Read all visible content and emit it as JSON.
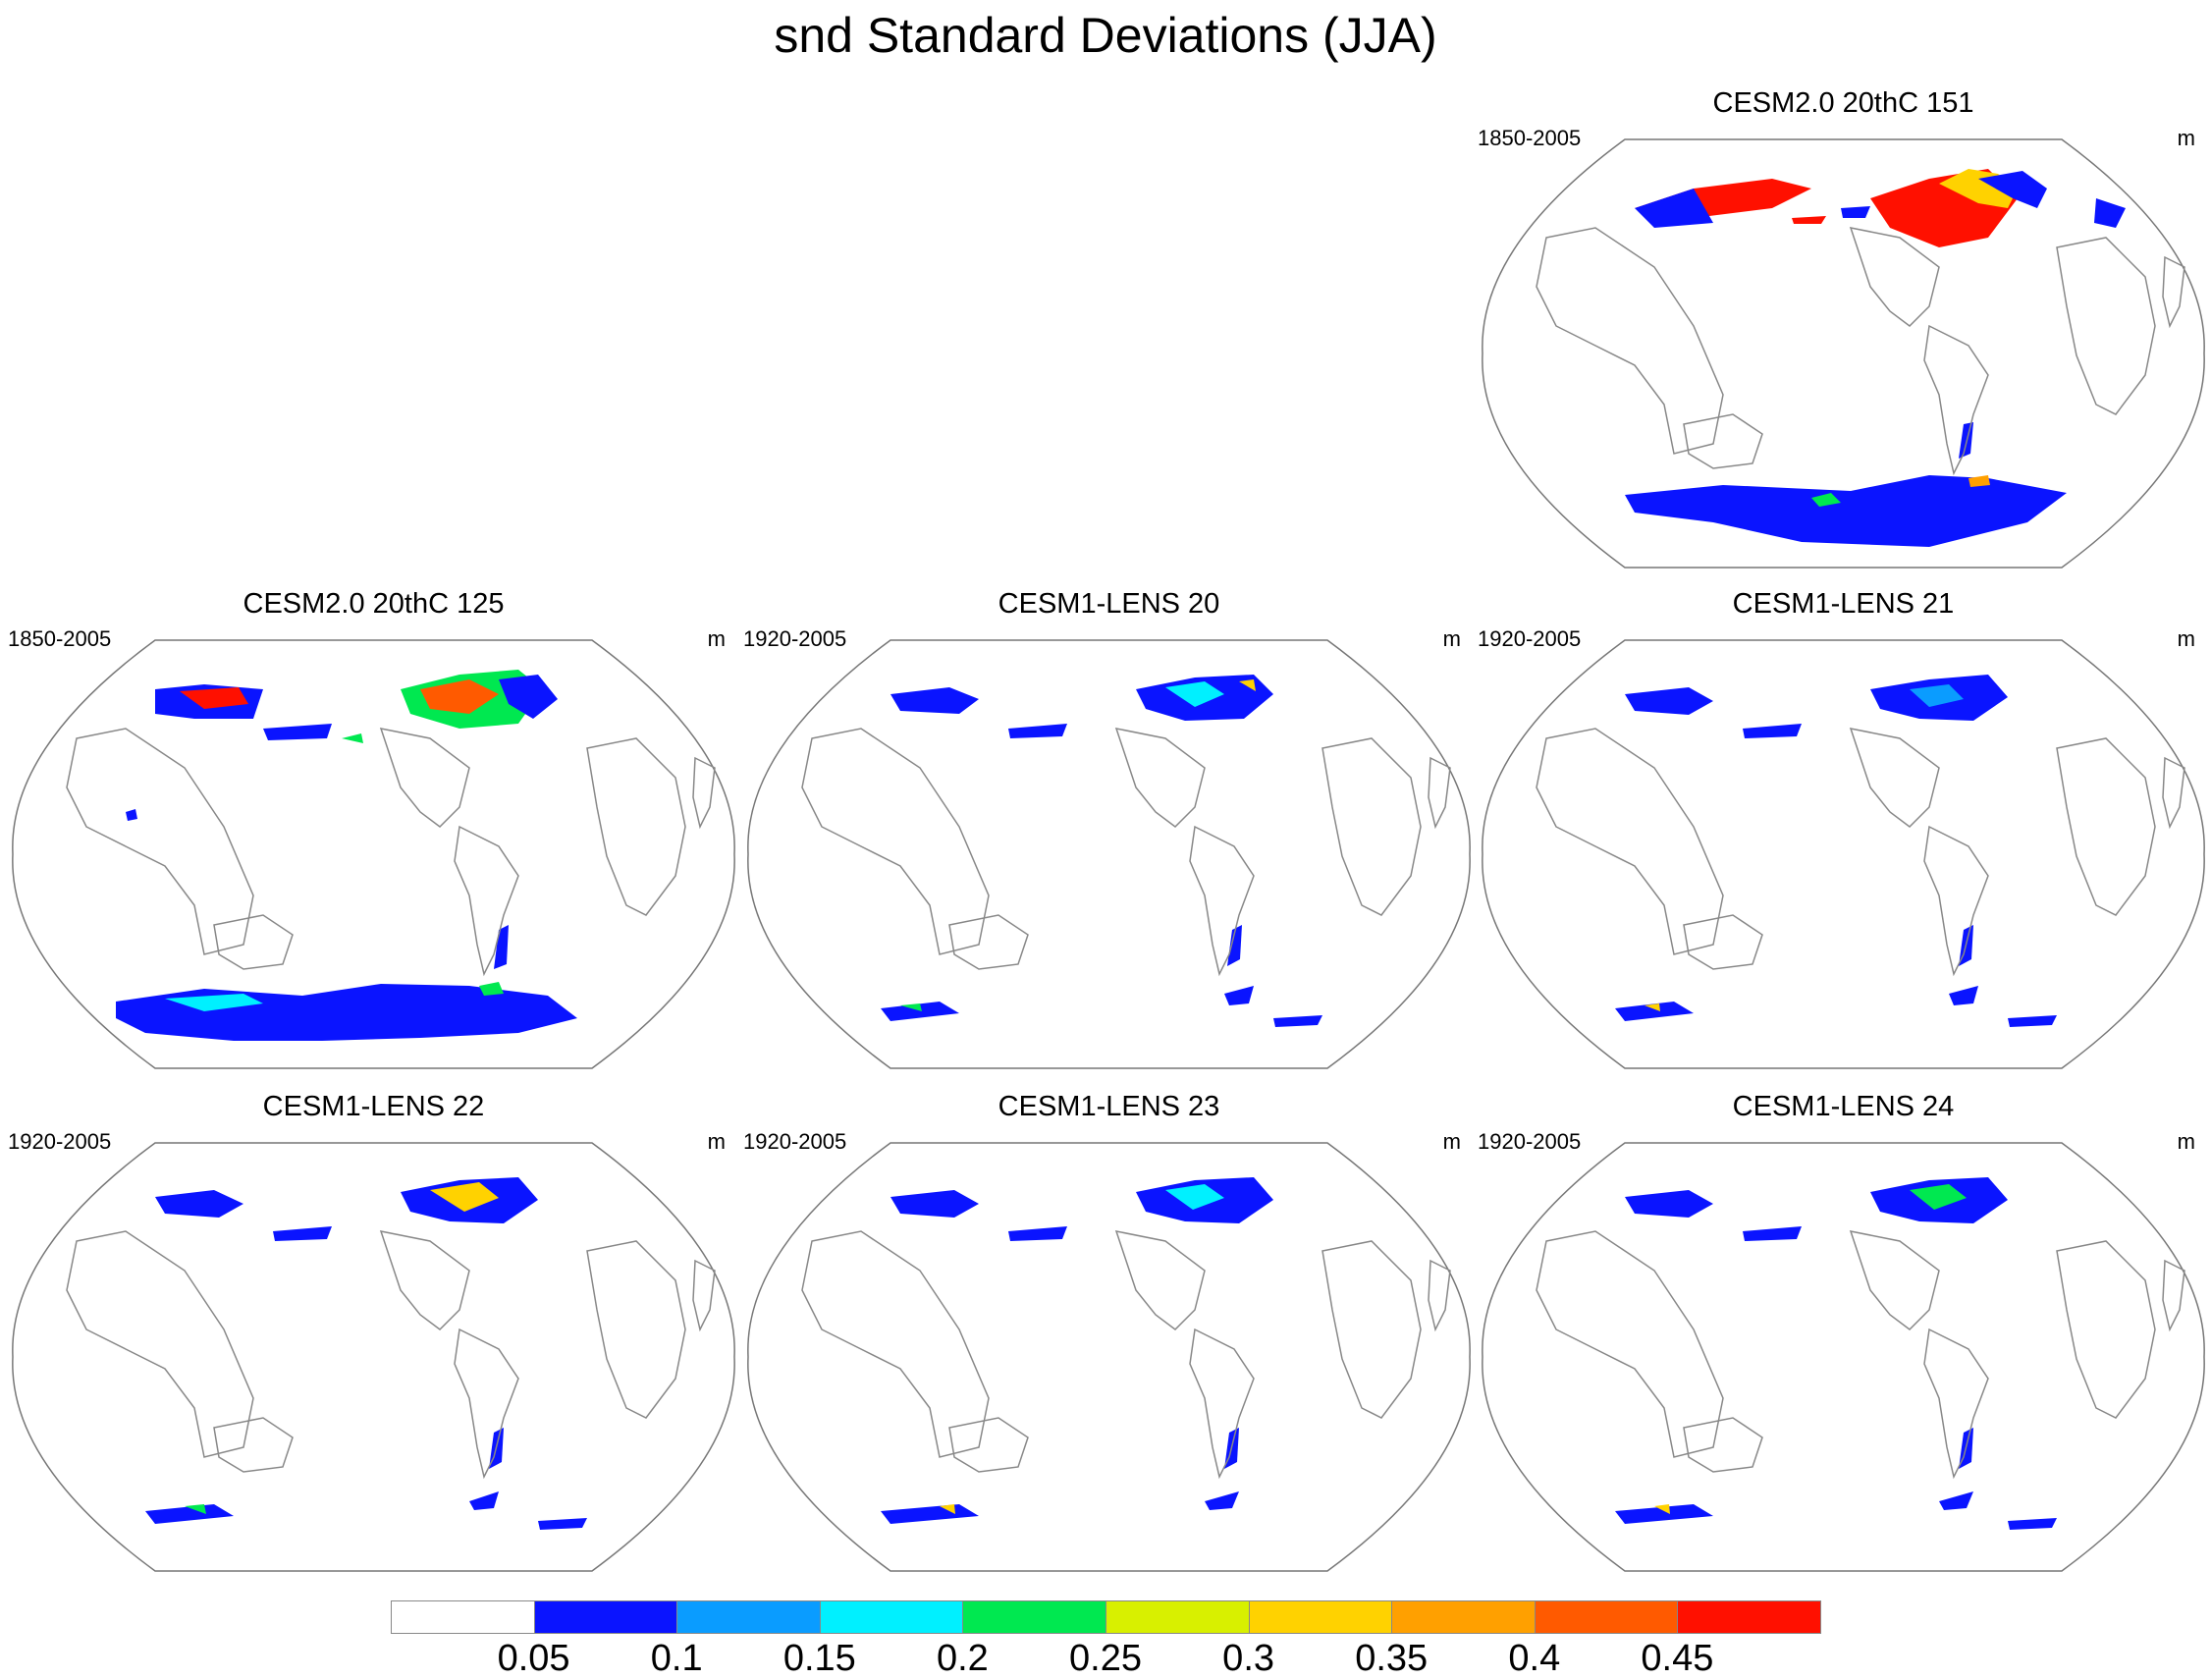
{
  "title": "snd Standard Deviations (JJA)",
  "panels": [
    {
      "title": "CESM2.0 20thC 151",
      "period": "1850-2005",
      "unit": "m"
    },
    {
      "title": "CESM2.0 20thC 125",
      "period": "1850-2005",
      "unit": "m"
    },
    {
      "title": "CESM1-LENS 20",
      "period": "1920-2005",
      "unit": "m"
    },
    {
      "title": "CESM1-LENS 21",
      "period": "1920-2005",
      "unit": "m"
    },
    {
      "title": "CESM1-LENS 22",
      "period": "1920-2005",
      "unit": "m"
    },
    {
      "title": "CESM1-LENS 23",
      "period": "1920-2005",
      "unit": "m"
    },
    {
      "title": "CESM1-LENS 24",
      "period": "1920-2005",
      "unit": "m"
    }
  ],
  "colorbar": {
    "labels": [
      "0.05",
      "0.1",
      "0.15",
      "0.2",
      "0.25",
      "0.3",
      "0.35",
      "0.4",
      "0.45"
    ],
    "colors": [
      "#ffffff",
      "#0a14ff",
      "#0a9cff",
      "#00f0ff",
      "#00e850",
      "#d8f000",
      "#ffd200",
      "#ffa000",
      "#ff5a00",
      "#ff1000"
    ]
  }
}
